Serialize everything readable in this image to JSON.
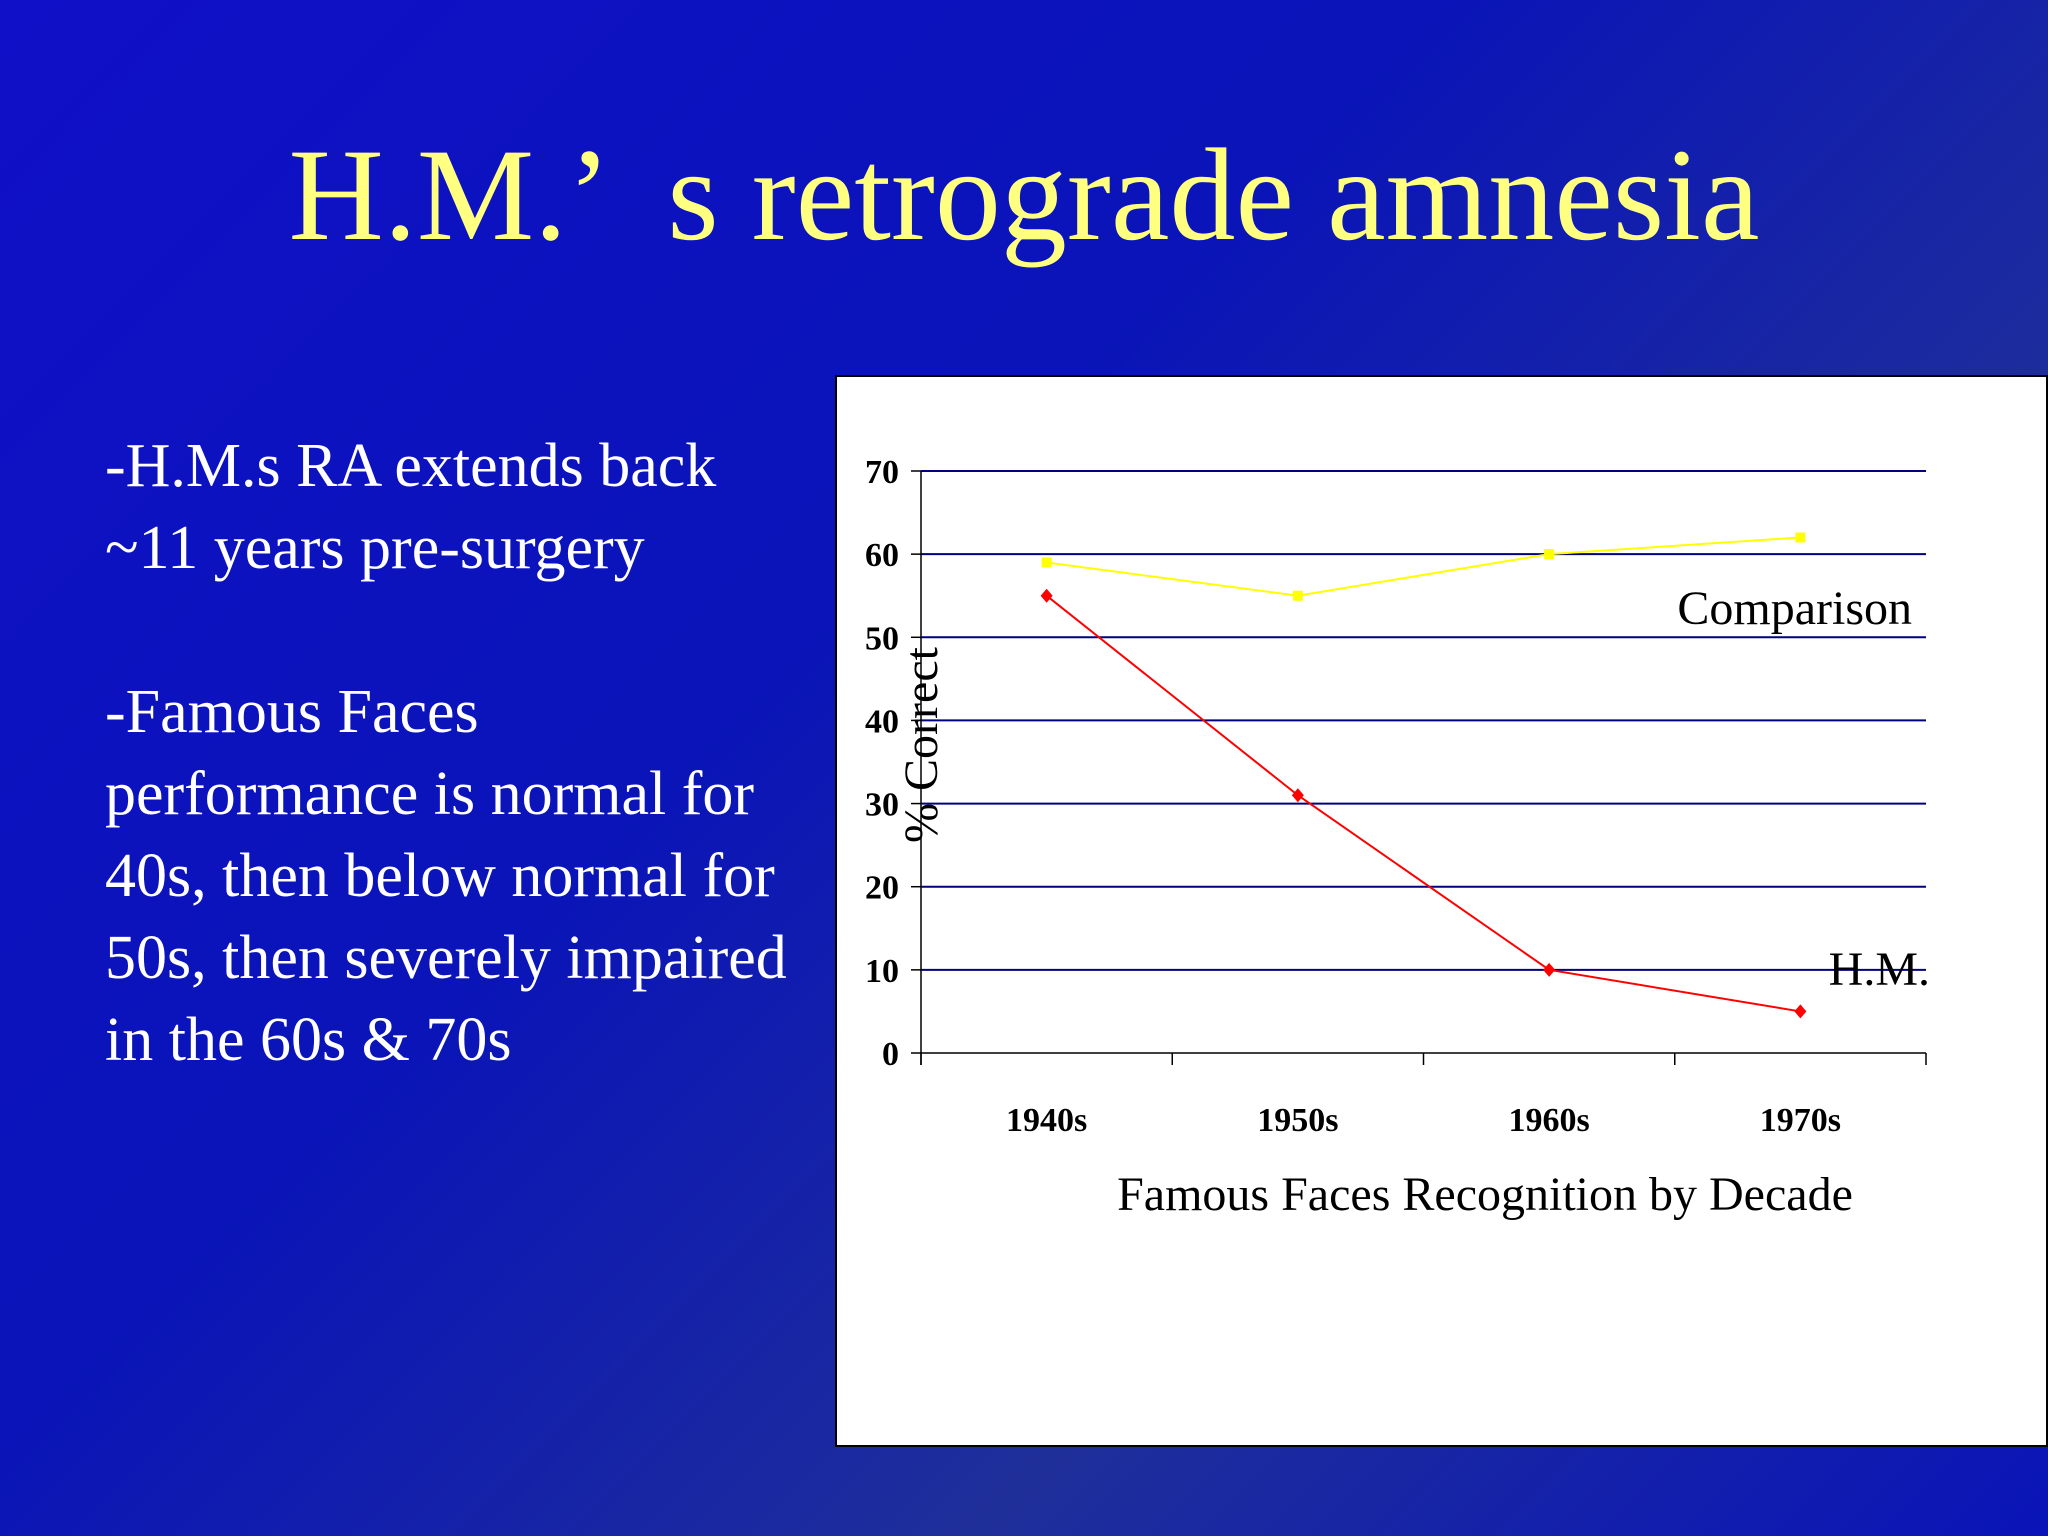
{
  "slide": {
    "title": "H.M.’  s retrograde amnesia",
    "bullets": [
      "-H.M.s RA extends back ~11 years pre-surgery",
      "-Famous Faces performance is normal for 40s, then below normal for 50s, then severely impaired in the 60s & 70s"
    ]
  },
  "chart_data": {
    "type": "line",
    "title": "",
    "xlabel": "Famous Faces Recognition by Decade",
    "ylabel": "% Correct",
    "categories": [
      "1940s",
      "1950s",
      "1960s",
      "1970s"
    ],
    "y_ticks": [
      "0",
      "10",
      "20",
      "30",
      "40",
      "50",
      "60",
      "70"
    ],
    "ylim": [
      0,
      70
    ],
    "grid": true,
    "legend": "inline labels at line ends",
    "series": [
      {
        "name": "Comparison",
        "values": [
          59,
          55,
          60,
          62
        ],
        "color": "#ffff00"
      },
      {
        "name": "H.M.",
        "values": [
          55,
          31,
          10,
          5
        ],
        "color": "#ff0000"
      }
    ],
    "gridline_color": "#000080"
  }
}
